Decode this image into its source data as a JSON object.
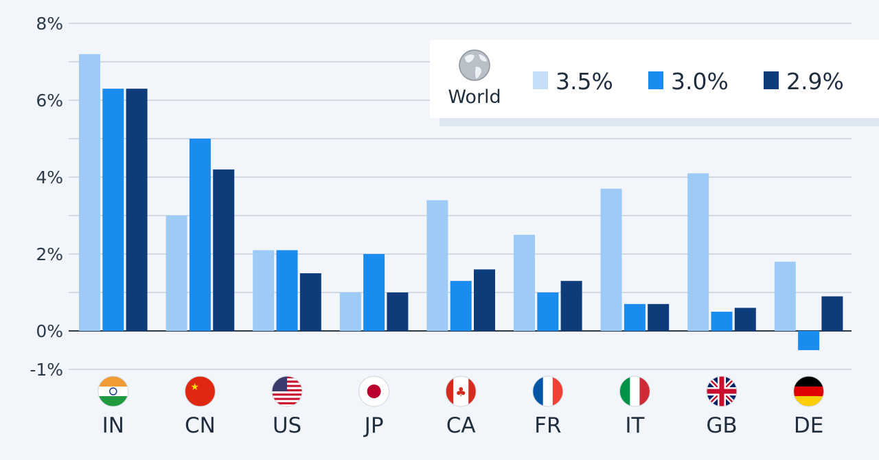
{
  "chart_data": {
    "type": "bar",
    "title": "",
    "xlabel": "",
    "ylabel": "",
    "ylim": [
      -1,
      8
    ],
    "yticks": [
      8,
      6,
      4,
      2,
      0,
      -1
    ],
    "ytick_labels": [
      "8%",
      "6%",
      "4%",
      "2%",
      "0%",
      "-1%"
    ],
    "grid": true,
    "categories": [
      "IN",
      "CN",
      "US",
      "JP",
      "CA",
      "FR",
      "IT",
      "GB",
      "DE"
    ],
    "series": [
      {
        "name": "3.5%",
        "color": "#9ecbf5",
        "legend_color": "#c4dff6",
        "values": [
          7.2,
          3.0,
          2.1,
          1.0,
          3.4,
          2.5,
          3.7,
          4.1,
          1.8
        ]
      },
      {
        "name": "3.0%",
        "color": "#1a8cf0",
        "legend_color": "#1a8cf0",
        "values": [
          6.3,
          5.0,
          2.1,
          2.0,
          1.3,
          1.0,
          0.7,
          0.5,
          -0.5
        ]
      },
      {
        "name": "2.9%",
        "color": "#0e3b7a",
        "legend_color": "#0e3b7a",
        "values": [
          6.3,
          4.2,
          1.5,
          1.0,
          1.6,
          1.3,
          0.7,
          0.6,
          0.9
        ]
      }
    ],
    "legend": {
      "title": "World",
      "icon": "globe-icon",
      "placement": "top-right"
    },
    "flags": [
      "india-flag-icon",
      "china-flag-icon",
      "usa-flag-icon",
      "japan-flag-icon",
      "canada-flag-icon",
      "france-flag-icon",
      "italy-flag-icon",
      "uk-flag-icon",
      "germany-flag-icon"
    ]
  }
}
